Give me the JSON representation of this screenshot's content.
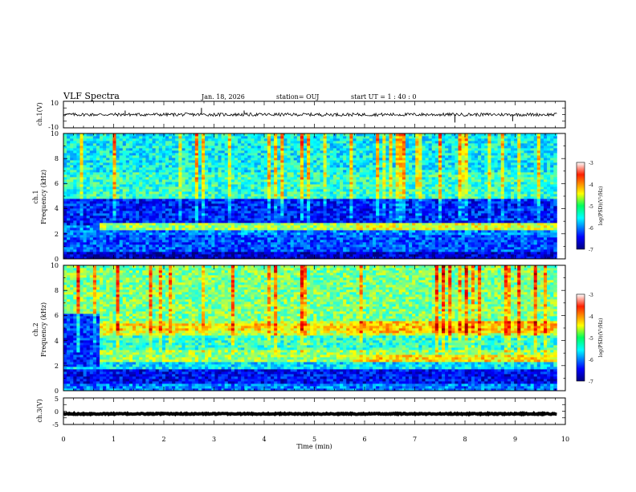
{
  "header": {
    "title": "VLF Spectra",
    "date": "Jan. 18, 2026",
    "station": "station= OUJ",
    "start": "start  UT =   1 : 40 : 0"
  },
  "chart_data": [
    {
      "type": "line",
      "name": "ch1-waveform",
      "ylabel": "ch.1(V)",
      "ylim": [
        -10,
        10
      ],
      "yticks": [
        "10",
        "-10"
      ],
      "baseline": 0,
      "noise_amplitude": 1.2,
      "spikes": [
        [
          1.23,
          3
        ],
        [
          2.75,
          5
        ],
        [
          3.6,
          3
        ],
        [
          7.8,
          -6
        ],
        [
          8.95,
          -5
        ]
      ]
    },
    {
      "type": "heatmap",
      "name": "ch1-spectrogram",
      "channel": "ch.1",
      "ylabel": "Frequency (kHz)",
      "ylim": [
        0,
        10
      ],
      "yticks": [
        "0",
        "2",
        "4",
        "6",
        "8",
        "10"
      ],
      "xlim": [
        0,
        10
      ],
      "data_extent_min": 9.83,
      "bands": [
        {
          "f": [
            0.0,
            0.5
          ],
          "level": -6.7
        },
        {
          "f": [
            0.5,
            2.0
          ],
          "level": -6.2
        },
        {
          "f": [
            2.0,
            2.7
          ],
          "level": -6.0
        },
        {
          "f": [
            2.7,
            4.8
          ],
          "level": -6.4
        },
        {
          "f": [
            4.8,
            7.0
          ],
          "level": -5.3
        },
        {
          "f": [
            7.0,
            10.0
          ],
          "level": -5.5
        }
      ],
      "enhanced_segments": [
        {
          "t": [
            0.75,
            5.75
          ],
          "f": [
            2.4,
            2.9
          ],
          "level": -4.9
        },
        {
          "t": [
            5.75,
            9.83
          ],
          "f": [
            2.4,
            2.9
          ],
          "level": -4.6
        }
      ],
      "colorbar": {
        "label": "log(PSD)(V²/Hz)",
        "range": [
          -7,
          -3
        ],
        "ticks": [
          "-3",
          "-4",
          "-5",
          "-6",
          "-7"
        ]
      }
    },
    {
      "type": "heatmap",
      "name": "ch2-spectrogram",
      "channel": "ch.2",
      "ylabel": "Frequency (kHz)",
      "ylim": [
        0,
        10
      ],
      "yticks": [
        "0",
        "2",
        "4",
        "6",
        "8",
        "10"
      ],
      "xlim": [
        0,
        10
      ],
      "data_extent_min": 9.83,
      "bands": [
        {
          "f": [
            0.0,
            0.5
          ],
          "level": -6.0
        },
        {
          "f": [
            0.5,
            1.8
          ],
          "level": -6.5
        },
        {
          "f": [
            1.8,
            2.4
          ],
          "level": -5.6
        },
        {
          "f": [
            2.4,
            3.2
          ],
          "level": -4.9
        },
        {
          "f": [
            3.2,
            4.5
          ],
          "level": -5.3
        },
        {
          "f": [
            4.5,
            5.6
          ],
          "level": -4.7
        },
        {
          "f": [
            5.6,
            10.0
          ],
          "level": -5.0
        }
      ],
      "enhanced_segments": [
        {
          "t": [
            0.0,
            0.7
          ],
          "f": [
            2.0,
            6.2
          ],
          "level": -6.3
        },
        {
          "t": [
            0.75,
            5.75
          ],
          "f": [
            4.8,
            5.4
          ],
          "level": -4.4
        },
        {
          "t": [
            5.75,
            9.83
          ],
          "f": [
            4.6,
            5.5
          ],
          "level": -4.3
        },
        {
          "t": [
            5.75,
            9.83
          ],
          "f": [
            2.4,
            2.9
          ],
          "level": -4.4
        }
      ],
      "colorbar": {
        "label": "log(PSD)(V²/Hz)",
        "range": [
          -7,
          -3
        ],
        "ticks": [
          "-3",
          "-4",
          "-5",
          "-6",
          "-7"
        ]
      }
    },
    {
      "type": "line",
      "name": "ch3-waveform",
      "ylabel": "ch.3(V)",
      "ylim": [
        -5,
        5
      ],
      "yticks": [
        "5",
        "0",
        "-5"
      ],
      "baseline": -1.0,
      "noise_amplitude": 0.2,
      "spikes": []
    }
  ],
  "xaxis": {
    "label": "Time (min)",
    "range": [
      0,
      10
    ],
    "ticks": [
      "0",
      "1",
      "2",
      "3",
      "4",
      "5",
      "6",
      "7",
      "8",
      "9",
      "10"
    ]
  },
  "colors": {
    "axis": "#000000",
    "trace": "#000000",
    "background": "#ffffff"
  }
}
